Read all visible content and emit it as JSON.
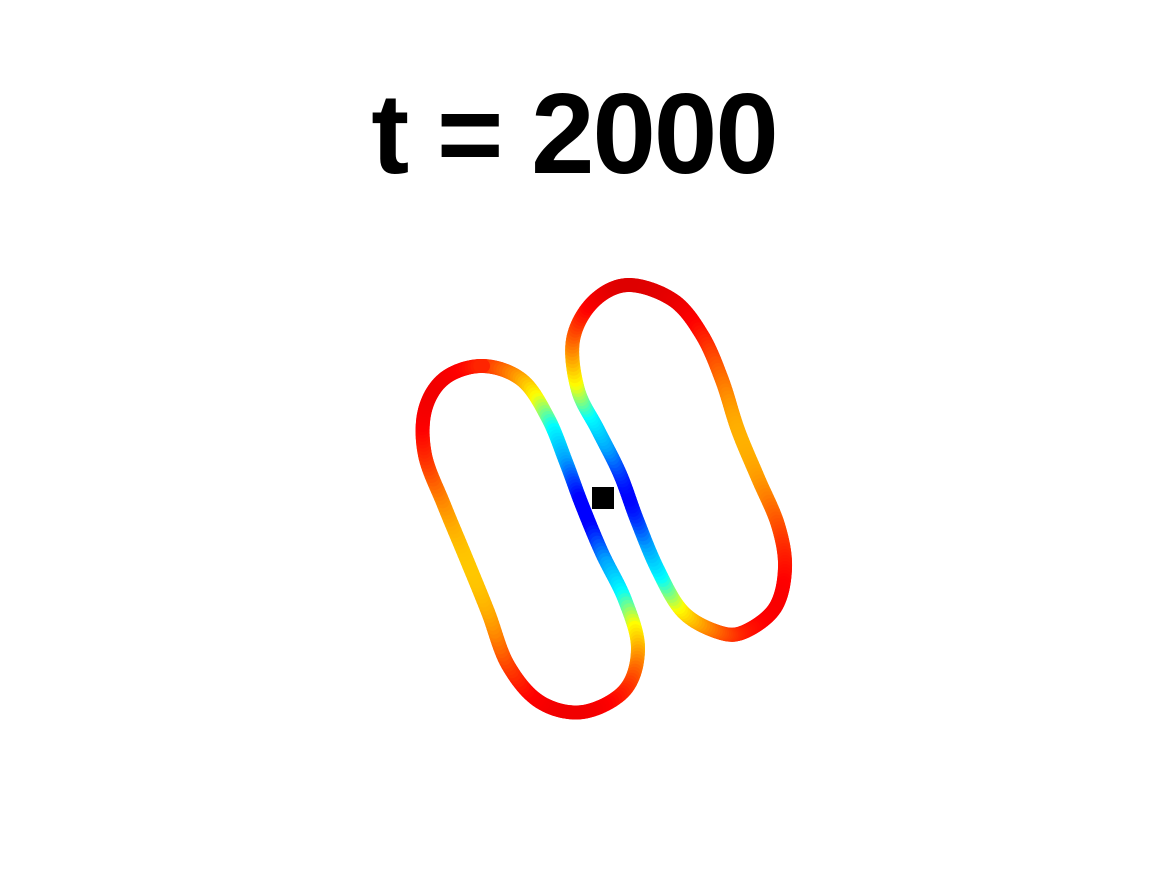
{
  "title": "t = 2000",
  "colors": {
    "background": "#ffffff",
    "title_text": "#000000",
    "center_marker": "#000000",
    "colormap": [
      "#0000ff",
      "#00a0ff",
      "#00ffff",
      "#ffff00",
      "#ff8000",
      "#ff0000",
      "#c80000"
    ]
  },
  "loops": [
    {
      "name": "left-loop"
    },
    {
      "name": "right-loop"
    }
  ],
  "center_marker": {
    "shape": "square"
  }
}
